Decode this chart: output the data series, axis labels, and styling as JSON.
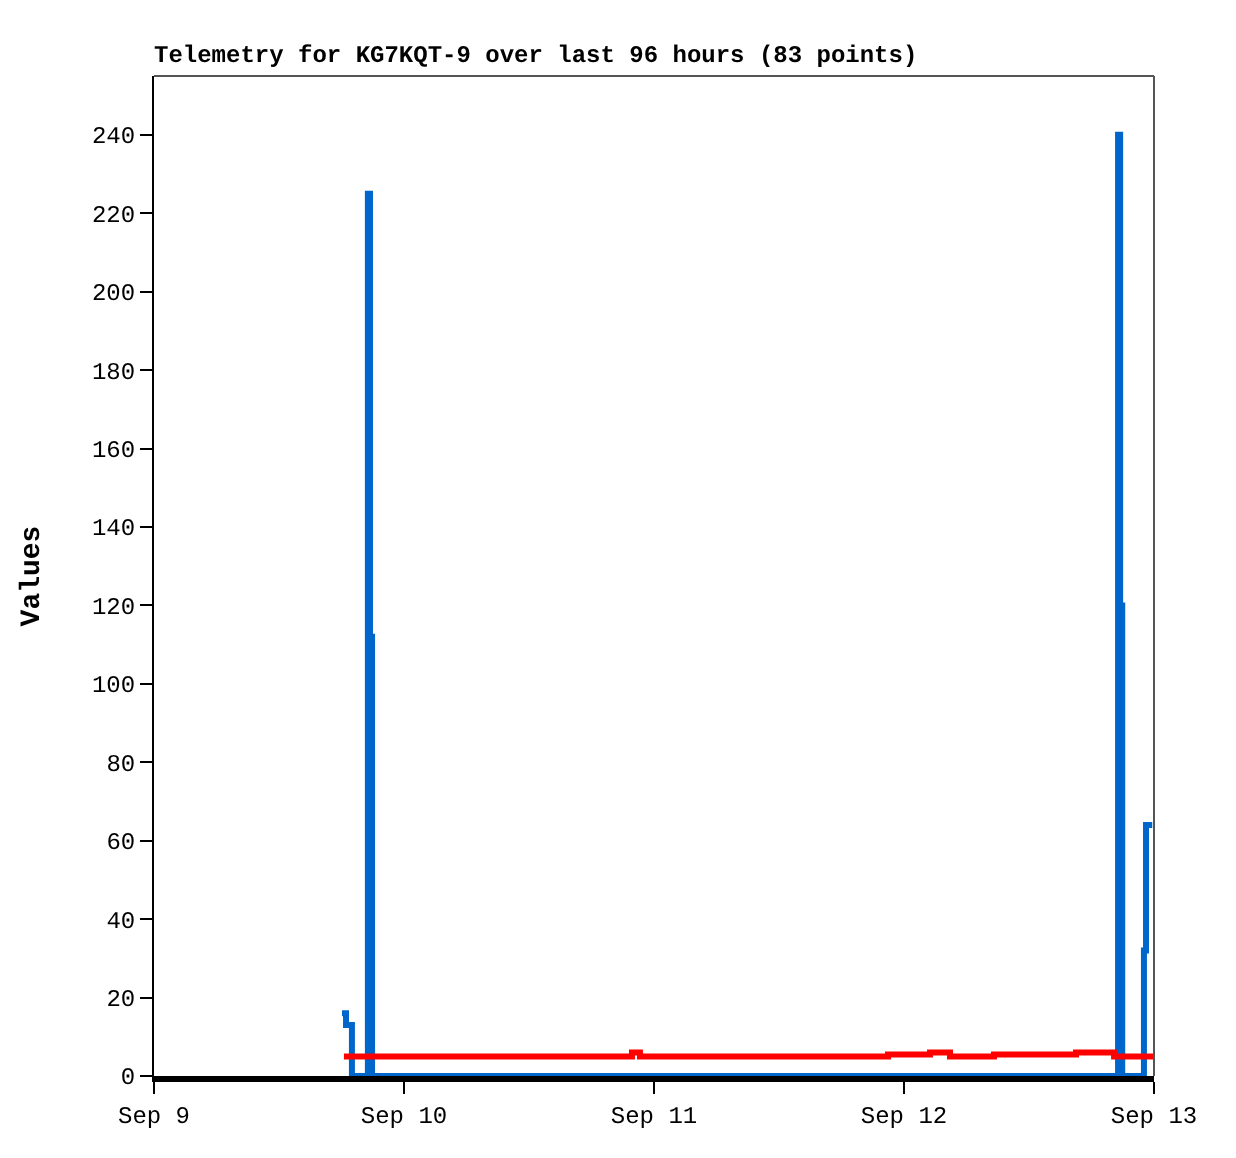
{
  "chart_data": {
    "type": "step",
    "title": "Telemetry for KG7KQT-9 over last 96 hours (83 points)",
    "ylabel": "Values",
    "series": [
      {
        "color": "#0066cc",
        "x": [
          "--09-09T18:03",
          "--09-09T18:26",
          "--09-09T19:00",
          "--09-09T20:32",
          "--09-09T20:44",
          "--09-09T20:56",
          "--09-12T20:33",
          "--09-12T20:45",
          "--09-12T20:57",
          "--09-12T23:02",
          "--09-12T23:14",
          "--09-12T23:50"
        ],
        "values": [
          16,
          13,
          0,
          225,
          112,
          0,
          240,
          120,
          0,
          32,
          64,
          64
        ]
      },
      {
        "color": "#ff0000",
        "x": [
          "--09-09T18:14",
          "--09-10T21:53",
          "--09-10T22:39",
          "--09-11T22:28",
          "--09-12T02:30",
          "--09-12T04:25",
          "--09-12T08:38",
          "--09-12T16:31",
          "--09-12T20:10",
          "--09-13T00:00"
        ],
        "values": [
          5,
          6,
          5,
          5.5,
          6,
          5,
          5.5,
          6,
          5,
          5
        ]
      }
    ],
    "xlim": [
      "--09-09",
      "--09-13"
    ],
    "xticks": [
      {
        "value": "--09-09",
        "label": "Sep 9"
      },
      {
        "value": "--09-10",
        "label": "Sep 10"
      },
      {
        "value": "--09-11",
        "label": "Sep 11"
      },
      {
        "value": "--09-12",
        "label": "Sep 12"
      },
      {
        "value": "--09-13",
        "label": "Sep 13"
      }
    ],
    "ylim": [
      0,
      255
    ],
    "yticks": [
      0,
      20,
      40,
      60,
      80,
      100,
      120,
      140,
      160,
      180,
      200,
      220,
      240
    ],
    "marker": "none",
    "line_style": "solid"
  }
}
